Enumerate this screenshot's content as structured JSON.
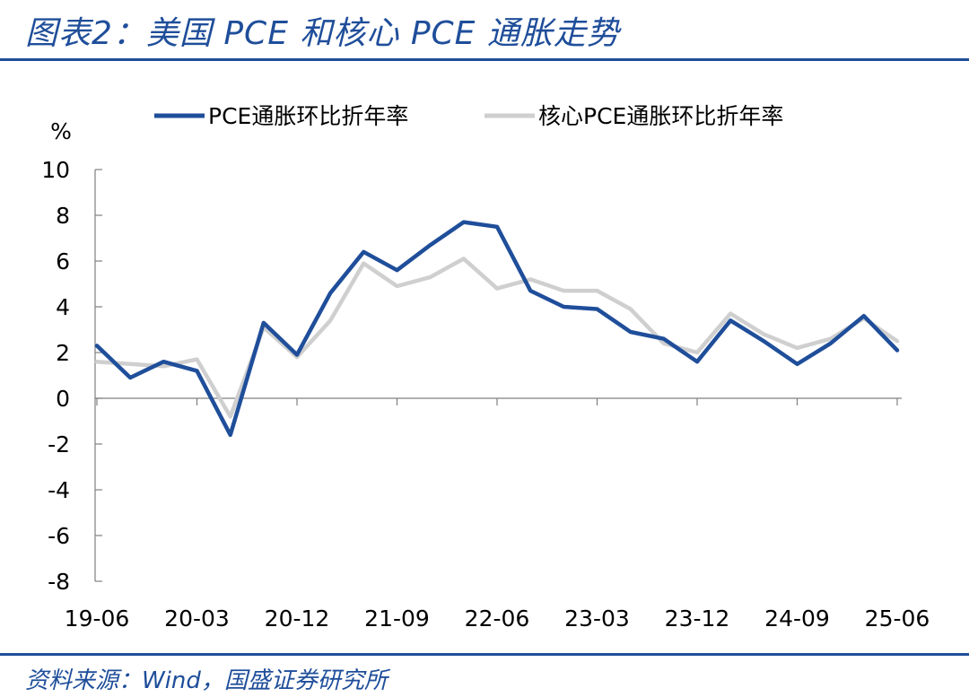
{
  "header": {
    "title": "图表2：美国 PCE 和核心 PCE 通胀走势"
  },
  "footer": {
    "source": "资料来源：Wind，国盛证券研究所"
  },
  "colors": {
    "brand": "#1f4e9a",
    "pce": "#1f4e9a",
    "core_pce": "#cfcfcf",
    "axis": "#808080"
  },
  "chart_data": {
    "type": "line",
    "title": "美国 PCE 和核心 PCE 通胀走势",
    "ylabel": "%",
    "ylim": [
      -8,
      10
    ],
    "yticks": [
      10,
      8,
      6,
      4,
      2,
      0,
      -2,
      -4,
      -6,
      -8
    ],
    "xtick_labels": [
      "19-06",
      "20-03",
      "20-12",
      "21-09",
      "22-06",
      "23-03",
      "23-12",
      "24-09",
      "25-06"
    ],
    "legend_position": "top",
    "grid": false,
    "x": [
      "19-06",
      "19-09",
      "19-12",
      "20-03",
      "20-06",
      "20-09",
      "20-12",
      "21-03",
      "21-06",
      "21-09",
      "21-12",
      "22-03",
      "22-06",
      "22-09",
      "22-12",
      "23-03",
      "23-06",
      "23-09",
      "23-12",
      "24-03",
      "24-06",
      "24-09",
      "24-12",
      "25-03",
      "25-06"
    ],
    "series": [
      {
        "name": "PCE通胀环比折年率",
        "values": [
          2.3,
          0.9,
          1.6,
          1.2,
          -1.6,
          3.3,
          1.9,
          4.6,
          6.4,
          5.6,
          6.7,
          7.7,
          7.5,
          4.7,
          4.0,
          3.9,
          2.9,
          2.6,
          1.6,
          3.4,
          2.5,
          1.5,
          2.4,
          3.6,
          2.1
        ]
      },
      {
        "name": "核心PCE通胀环比折年率",
        "values": [
          1.6,
          1.5,
          1.4,
          1.7,
          -0.8,
          3.1,
          1.8,
          3.4,
          5.9,
          4.9,
          5.3,
          6.1,
          4.8,
          5.2,
          4.7,
          4.7,
          3.9,
          2.4,
          2.0,
          3.7,
          2.8,
          2.2,
          2.6,
          3.5,
          2.5
        ]
      }
    ]
  }
}
